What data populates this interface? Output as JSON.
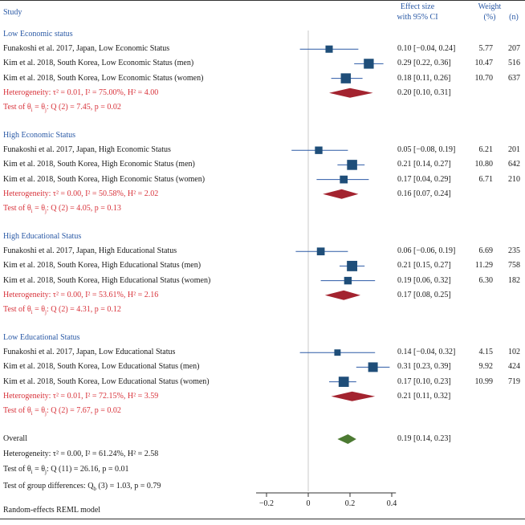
{
  "header": {
    "study": "Study",
    "effect_line1": "Effect size",
    "effect_line2": "with 95% CI",
    "weight_line1": "Weight",
    "weight_line2": "(%)",
    "n": "(n)"
  },
  "colors": {
    "marker": "#1f4e79",
    "ci_line": "#2b5aa6",
    "subgroup_diamond": "#a3232f",
    "overall_diamond": "#4c7a32",
    "heading": "#2b5aa6",
    "heterogeneity_text": "#d8323a"
  },
  "chart_data": {
    "type": "forest",
    "model_note": "Random-effects REML model",
    "xaxis": {
      "ticks": [
        -0.2,
        0,
        0.2,
        0.4
      ],
      "tick_labels": [
        "−0.2",
        "0",
        "0.2",
        "0.4"
      ],
      "range": [
        -0.25,
        0.42
      ]
    },
    "groups": [
      {
        "title": "Low Economic status",
        "studies": [
          {
            "label": "Funakoshi et al. 2017, Japan, Low Economic Status",
            "effect": 0.1,
            "lo": -0.04,
            "hi": 0.24,
            "text": "0.10 [−0.04, 0.24]",
            "weight": "5.77",
            "n": "207"
          },
          {
            "label": "Kim et al. 2018, South Korea, Low Economic Status (men)",
            "effect": 0.29,
            "lo": 0.22,
            "hi": 0.36,
            "text": "0.29 [0.22, 0.36]",
            "weight": "10.47",
            "n": "516"
          },
          {
            "label": "Kim et al. 2018, South Korea, Low Economic Status (women)",
            "effect": 0.18,
            "lo": 0.11,
            "hi": 0.26,
            "text": "0.18 [0.11, 0.26]",
            "weight": "10.70",
            "n": "637"
          }
        ],
        "heterogeneity": "Heterogeneity: τ² = 0.01, I² = 75.00%, H² = 4.00",
        "pooled": {
          "effect": 0.2,
          "lo": 0.1,
          "hi": 0.31,
          "text": "0.20 [0.10, 0.31]"
        },
        "test": "Test of θi = θj: Q (2) = 7.45, p = 0.02"
      },
      {
        "title": "High Economic Status",
        "studies": [
          {
            "label": "Funakoshi et al. 2017, Japan, High Economic Status",
            "effect": 0.05,
            "lo": -0.08,
            "hi": 0.19,
            "text": "0.05 [−0.08, 0.19]",
            "weight": "6.21",
            "n": "201"
          },
          {
            "label": "Kim et al. 2018, South Korea, High Economic Status (men)",
            "effect": 0.21,
            "lo": 0.14,
            "hi": 0.27,
            "text": "0.21 [0.14, 0.27]",
            "weight": "10.80",
            "n": "642"
          },
          {
            "label": "Kim et al. 2018, South Korea, High Economic Status (women)",
            "effect": 0.17,
            "lo": 0.04,
            "hi": 0.29,
            "text": "0.17 [0.04, 0.29]",
            "weight": "6.71",
            "n": "210"
          }
        ],
        "heterogeneity": "Heterogeneity: τ² = 0.00, I² = 50.58%, H² = 2.02",
        "pooled": {
          "effect": 0.16,
          "lo": 0.07,
          "hi": 0.24,
          "text": "0.16 [0.07, 0.24]"
        },
        "test": "Test of θi = θj: Q (2) = 4.05, p = 0.13"
      },
      {
        "title": "High Educational Status",
        "studies": [
          {
            "label": "Funakoshi et al. 2017, Japan, High Educational Status",
            "effect": 0.06,
            "lo": -0.06,
            "hi": 0.19,
            "text": "0.06 [−0.06, 0.19]",
            "weight": "6.69",
            "n": "235"
          },
          {
            "label": "Kim et al. 2018, South Korea, High Educational Status (men)",
            "effect": 0.21,
            "lo": 0.15,
            "hi": 0.27,
            "text": "0.21 [0.15, 0.27]",
            "weight": "11.29",
            "n": "758"
          },
          {
            "label": "Kim et al. 2018, South Korea, High Educational Status (women)",
            "effect": 0.19,
            "lo": 0.06,
            "hi": 0.32,
            "text": "0.19 [0.06, 0.32]",
            "weight": "6.30",
            "n": "182"
          }
        ],
        "heterogeneity": "Heterogeneity: τ² = 0.00, I² = 53.61%, H² = 2.16",
        "pooled": {
          "effect": 0.17,
          "lo": 0.08,
          "hi": 0.25,
          "text": "0.17 [0.08, 0.25]"
        },
        "test": "Test of θi = θj: Q (2) = 4.31, p = 0.12"
      },
      {
        "title": "Low Educational Status",
        "studies": [
          {
            "label": "Funakoshi et al. 2017, Japan, Low Educational Status",
            "effect": 0.14,
            "lo": -0.04,
            "hi": 0.32,
            "text": "0.14 [−0.04, 0.32]",
            "weight": "4.15",
            "n": "102"
          },
          {
            "label": "Kim et al. 2018, South Korea, Low Educational Status (men)",
            "effect": 0.31,
            "lo": 0.23,
            "hi": 0.39,
            "text": "0.31 [0.23, 0.39]",
            "weight": "9.92",
            "n": "424"
          },
          {
            "label": "Kim et al. 2018, South Korea, Low Educational Status (women)",
            "effect": 0.17,
            "lo": 0.1,
            "hi": 0.23,
            "text": "0.17 [0.10, 0.23]",
            "weight": "10.99",
            "n": "719"
          }
        ],
        "heterogeneity": "Heterogeneity: τ² = 0.01, I² = 72.15%, H² = 3.59",
        "pooled": {
          "effect": 0.21,
          "lo": 0.11,
          "hi": 0.32,
          "text": "0.21 [0.11, 0.32]"
        },
        "test": "Test of θi = θj: Q (2) = 7.67, p = 0.02"
      }
    ],
    "overall": {
      "label": "Overall",
      "effect": 0.19,
      "lo": 0.14,
      "hi": 0.23,
      "text": "0.19 [0.14, 0.23]",
      "heterogeneity": "Heterogeneity: τ² = 0.00, I² = 61.24%, H² = 2.58",
      "test": "Test of θi = θj: Q (11) = 26.16, p = 0.01",
      "group_test": "Test of group differences: Qb (3) = 1.03, p = 0.79"
    }
  }
}
